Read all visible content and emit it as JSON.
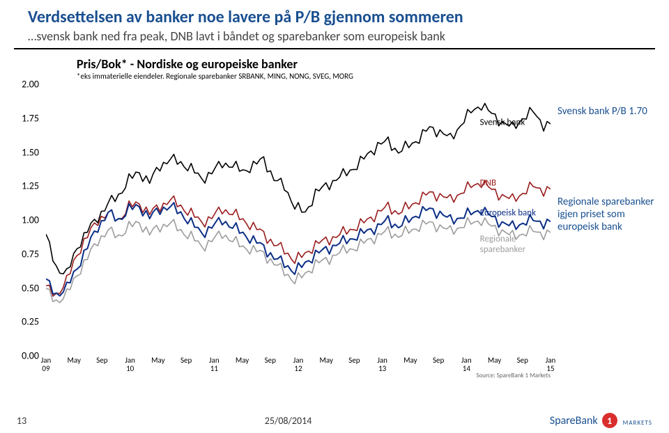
{
  "header": {
    "title": "Verdsettelsen av banker noe lavere på P/B gjennom sommeren",
    "subtitle": "…svensk bank ned fra peak, DNB lavt i båndet og sparebanker som europeisk bank"
  },
  "chart": {
    "type": "line",
    "title": "Pris/Bok* - Nordiske og europeiske banker",
    "subtitle": "*eks immaterielle eiendeler. Regionale sparebanker SRBANK, MING, NONG, SVEG, MORG",
    "y": {
      "min": 0.0,
      "max": 2.0,
      "ticks": [
        2.0,
        1.75,
        1.5,
        1.25,
        1.0,
        0.75,
        0.5,
        0.25,
        0.0
      ]
    },
    "x": {
      "months": [
        "Jan",
        "May",
        "Sep",
        "Jan",
        "May",
        "Sep",
        "Jan",
        "May",
        "Sep",
        "Jan",
        "May",
        "Sep",
        "Jan",
        "May",
        "Sep",
        "Jan",
        "May",
        "Sep",
        "Jan"
      ],
      "years": [
        "09",
        "",
        "",
        "10",
        "",
        "",
        "11",
        "",
        "",
        "12",
        "",
        "",
        "13",
        "",
        "",
        "14",
        "",
        "",
        "15"
      ]
    },
    "source": "Source: SpareBank 1 Markets",
    "background_color": "#ffffff",
    "series": {
      "svensk": {
        "label": "Svensk bank",
        "color": "#000000",
        "width": 1.6,
        "label_x": 0.86,
        "label_y": 1.72,
        "data": [
          0.88,
          0.65,
          0.6,
          0.8,
          0.92,
          1.02,
          1.12,
          1.18,
          1.3,
          1.35,
          1.28,
          1.4,
          1.45,
          1.42,
          1.38,
          1.3,
          1.35,
          1.42,
          1.4,
          1.36,
          1.4,
          1.45,
          1.3,
          1.25,
          1.1,
          1.05,
          1.2,
          1.25,
          1.3,
          1.35,
          1.4,
          1.48,
          1.55,
          1.58,
          1.5,
          1.55,
          1.6,
          1.68,
          1.65,
          1.6,
          1.7,
          1.8,
          1.85,
          1.78,
          1.72,
          1.68,
          1.75,
          1.8,
          1.7
        ]
      },
      "dnb": {
        "label": "DNB",
        "color": "#9a1b1b",
        "width": 1.6,
        "label_x": 0.86,
        "label_y": 1.27,
        "data": [
          0.5,
          0.45,
          0.55,
          0.75,
          0.88,
          1.0,
          1.05,
          1.0,
          1.1,
          1.12,
          1.05,
          1.1,
          1.15,
          1.1,
          1.05,
          0.98,
          1.02,
          1.08,
          1.05,
          1.0,
          0.95,
          0.9,
          0.82,
          0.78,
          0.7,
          0.75,
          0.82,
          0.85,
          0.88,
          0.92,
          0.95,
          1.0,
          1.05,
          1.1,
          1.05,
          1.1,
          1.15,
          1.2,
          1.18,
          1.15,
          1.2,
          1.25,
          1.28,
          1.22,
          1.18,
          1.15,
          1.2,
          1.25,
          1.22
        ]
      },
      "europeisk": {
        "label": "Europeisk bank",
        "color": "#0b2e86",
        "width": 2.0,
        "label_x": 0.86,
        "label_y": 1.05,
        "data": [
          0.55,
          0.45,
          0.5,
          0.65,
          0.8,
          0.95,
          1.05,
          1.0,
          1.08,
          1.1,
          1.02,
          1.08,
          1.1,
          1.05,
          0.98,
          0.9,
          0.95,
          1.0,
          0.95,
          0.9,
          0.85,
          0.8,
          0.72,
          0.68,
          0.62,
          0.68,
          0.75,
          0.78,
          0.82,
          0.85,
          0.88,
          0.92,
          0.95,
          1.0,
          0.95,
          1.0,
          1.05,
          1.08,
          1.05,
          1.0,
          1.02,
          1.05,
          1.08,
          1.02,
          0.98,
          0.95,
          0.98,
          1.0,
          0.98
        ]
      },
      "regionale": {
        "label": "Regionale sparebanker",
        "color": "#9c9c9c",
        "width": 1.6,
        "label_x": 0.86,
        "label_y": 0.82,
        "data": [
          0.48,
          0.4,
          0.45,
          0.6,
          0.72,
          0.85,
          0.92,
          0.88,
          0.95,
          0.98,
          0.9,
          0.95,
          0.98,
          0.92,
          0.88,
          0.8,
          0.85,
          0.9,
          0.85,
          0.8,
          0.78,
          0.75,
          0.68,
          0.62,
          0.55,
          0.6,
          0.68,
          0.7,
          0.75,
          0.78,
          0.8,
          0.85,
          0.88,
          0.92,
          0.88,
          0.92,
          0.95,
          0.98,
          0.95,
          0.92,
          0.95,
          0.98,
          1.0,
          0.95,
          0.92,
          0.88,
          0.9,
          0.92,
          0.9
        ]
      }
    }
  },
  "annotations": {
    "top": {
      "text": "Svensk bank P/B 1.70",
      "y": 70
    },
    "bottom": {
      "text": "Regionale sparebanker igjen priset som europeisk bank",
      "y": 200
    }
  },
  "footer": {
    "page": "13",
    "date": "25/08/2014",
    "brand": "SpareBank",
    "brand_num": "1",
    "brand_sub": "MARKETS"
  }
}
